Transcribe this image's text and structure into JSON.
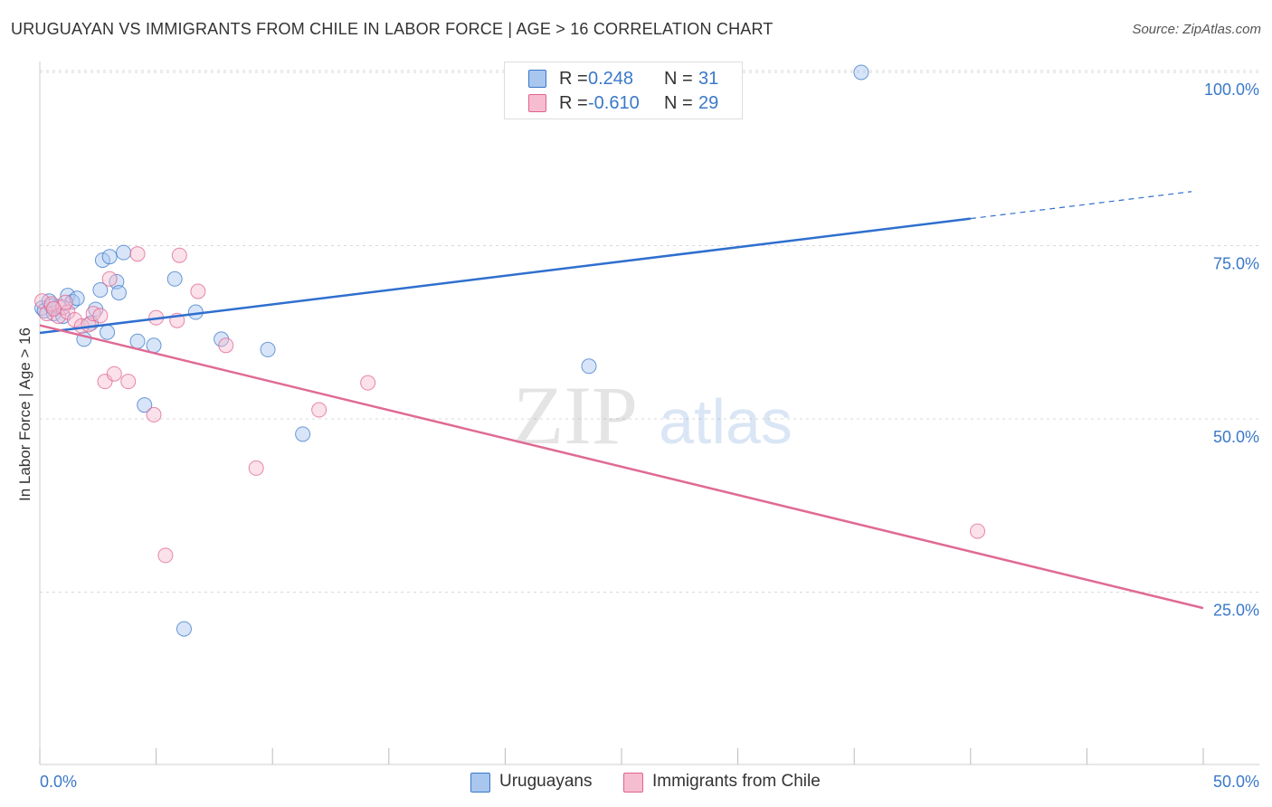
{
  "header": {
    "title": "URUGUAYAN VS IMMIGRANTS FROM CHILE IN LABOR FORCE | AGE > 16 CORRELATION CHART",
    "source": "Source: ZipAtlas.com"
  },
  "watermark": {
    "zip": "ZIP",
    "atlas": "atlas"
  },
  "stats_legend": [
    {
      "r_label": "R =",
      "r_value": "0.248",
      "n_label": "N =",
      "n_value": "31"
    },
    {
      "r_label": "R =",
      "r_value": "-0.610",
      "n_label": "N =",
      "n_value": "29"
    }
  ],
  "colors": {
    "blue": "#3a78c9",
    "blue_fill": "#a9c6ef",
    "blue_line": "#2f6fcf",
    "pink": "#e0628f",
    "pink_fill": "#f6bdd1",
    "pink_line": "#e06a95",
    "grid": "#d8d8d8",
    "tick_label": "#3a78c9"
  },
  "chart_data": {
    "type": "scatter",
    "title": "URUGUAYAN VS IMMIGRANTS FROM CHILE IN LABOR FORCE | AGE > 16 CORRELATION CHART",
    "xlabel": "",
    "ylabel": "In Labor Force | Age > 16",
    "xlim": [
      0,
      50
    ],
    "ylim": [
      0,
      105
    ],
    "x_tick_labels": [
      "0.0%",
      "50.0%"
    ],
    "y_ticks": [
      25,
      50,
      75,
      100
    ],
    "y_tick_labels": [
      "25.0%",
      "50.0%",
      "75.0%",
      "100.0%"
    ],
    "grid": true,
    "series": [
      {
        "name": "Uruguayans",
        "color": "#3a78c9",
        "r": 0.248,
        "n": 31,
        "points": [
          [
            0.1,
            66.0
          ],
          [
            0.2,
            65.6
          ],
          [
            0.4,
            67.0
          ],
          [
            0.6,
            65.2
          ],
          [
            0.8,
            66.2
          ],
          [
            1.0,
            64.8
          ],
          [
            1.2,
            67.8
          ],
          [
            1.4,
            66.9
          ],
          [
            1.6,
            67.4
          ],
          [
            1.9,
            61.5
          ],
          [
            2.2,
            63.8
          ],
          [
            2.4,
            65.8
          ],
          [
            2.6,
            68.6
          ],
          [
            2.7,
            72.9
          ],
          [
            3.0,
            73.4
          ],
          [
            3.3,
            69.8
          ],
          [
            3.4,
            68.2
          ],
          [
            2.9,
            62.5
          ],
          [
            3.6,
            74.0
          ],
          [
            4.2,
            61.2
          ],
          [
            4.5,
            52.0
          ],
          [
            4.9,
            60.6
          ],
          [
            5.8,
            70.2
          ],
          [
            6.7,
            65.4
          ],
          [
            7.8,
            61.5
          ],
          [
            9.8,
            60.0
          ],
          [
            11.3,
            47.8
          ],
          [
            23.6,
            57.6
          ],
          [
            6.2,
            19.7
          ],
          [
            35.3,
            100.0
          ],
          [
            0.5,
            66.3
          ]
        ],
        "trend": {
          "x": [
            0,
            40
          ],
          "y": [
            62.4,
            78.9
          ],
          "dash_x": [
            40,
            49.5
          ],
          "dash_y": [
            78.9,
            82.8
          ]
        }
      },
      {
        "name": "Immigrants from Chile",
        "color": "#e0628f",
        "r": -0.61,
        "n": 29,
        "points": [
          [
            0.1,
            67.0
          ],
          [
            0.3,
            65.2
          ],
          [
            0.5,
            66.6
          ],
          [
            0.8,
            64.8
          ],
          [
            1.0,
            66.1
          ],
          [
            1.2,
            65.4
          ],
          [
            1.5,
            64.3
          ],
          [
            1.8,
            63.4
          ],
          [
            2.1,
            63.6
          ],
          [
            2.3,
            65.2
          ],
          [
            2.6,
            64.9
          ],
          [
            2.8,
            55.4
          ],
          [
            3.0,
            70.2
          ],
          [
            3.2,
            56.5
          ],
          [
            3.8,
            55.4
          ],
          [
            4.2,
            73.8
          ],
          [
            4.9,
            50.6
          ],
          [
            5.0,
            64.6
          ],
          [
            5.4,
            30.3
          ],
          [
            5.9,
            64.2
          ],
          [
            6.0,
            73.6
          ],
          [
            6.8,
            68.4
          ],
          [
            8.0,
            60.6
          ],
          [
            9.3,
            42.9
          ],
          [
            12.0,
            51.3
          ],
          [
            14.1,
            55.2
          ],
          [
            40.3,
            33.8
          ],
          [
            1.1,
            66.8
          ],
          [
            0.6,
            65.9
          ]
        ],
        "trend": {
          "x": [
            0,
            50
          ],
          "y": [
            63.5,
            22.7
          ]
        }
      }
    ]
  }
}
